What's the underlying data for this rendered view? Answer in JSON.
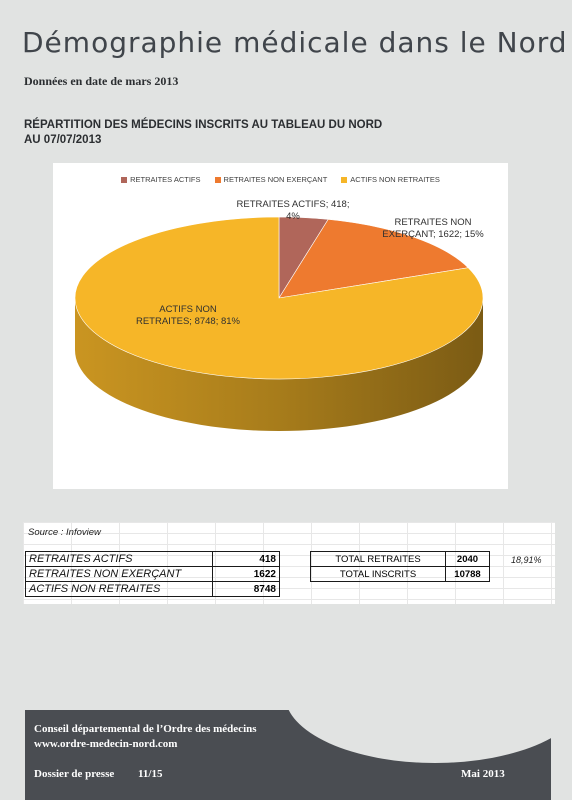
{
  "header": {
    "title": "Démographie médicale dans le Nord",
    "date_line": "Données en date de mars 2013",
    "section_title_line1": "RÉPARTITION DES MÉDECINS INSCRITS AU TABLEAU DU NORD",
    "section_title_line2": "AU 07/07/2013"
  },
  "chart_data": {
    "type": "pie",
    "style": "3d",
    "legend_position": "top",
    "slices": [
      {
        "name": "RETRAITES ACTIFS",
        "value": 418,
        "percent": 4,
        "color": "#b0665a",
        "label_line1": "RETRAITES ACTIFS;  418;",
        "label_line2": "4%"
      },
      {
        "name": "RETRAITES NON EXERÇANT",
        "value": 1622,
        "percent": 15,
        "color": "#ee7a2f",
        "label_line1": "RETRAITES NON",
        "label_line2": "EXERÇANT;  1622;  15%"
      },
      {
        "name": "ACTIFS NON RETRAITES",
        "value": 8748,
        "percent": 81,
        "color": "#f6b628",
        "label_line1": "ACTIFS NON",
        "label_line2": "RETRAITES;  8748;  81%"
      }
    ]
  },
  "table": {
    "source": "Source : Infoview",
    "rows": [
      {
        "label": "RETRAITES ACTIFS",
        "value": "418"
      },
      {
        "label": "RETRAITES NON EXERÇANT",
        "value": "1622"
      },
      {
        "label": "ACTIFS NON RETRAITES",
        "value": "8748"
      }
    ],
    "totals": [
      {
        "label": "TOTAL RETRAITES",
        "value": "2040"
      },
      {
        "label": "TOTAL INSCRITS",
        "value": "10788"
      }
    ],
    "percent_retraites": "18,91%"
  },
  "footer": {
    "org_line": "Conseil départemental de l’Ordre des médecins",
    "url": "www.ordre-medecin-nord.com",
    "dossier": "Dossier de presse",
    "page": "11/15",
    "date": "Mai 2013"
  },
  "colors": {
    "page_background": "#e1e3e2",
    "footer_background": "#4a4d52",
    "title_text": "#40454b"
  }
}
